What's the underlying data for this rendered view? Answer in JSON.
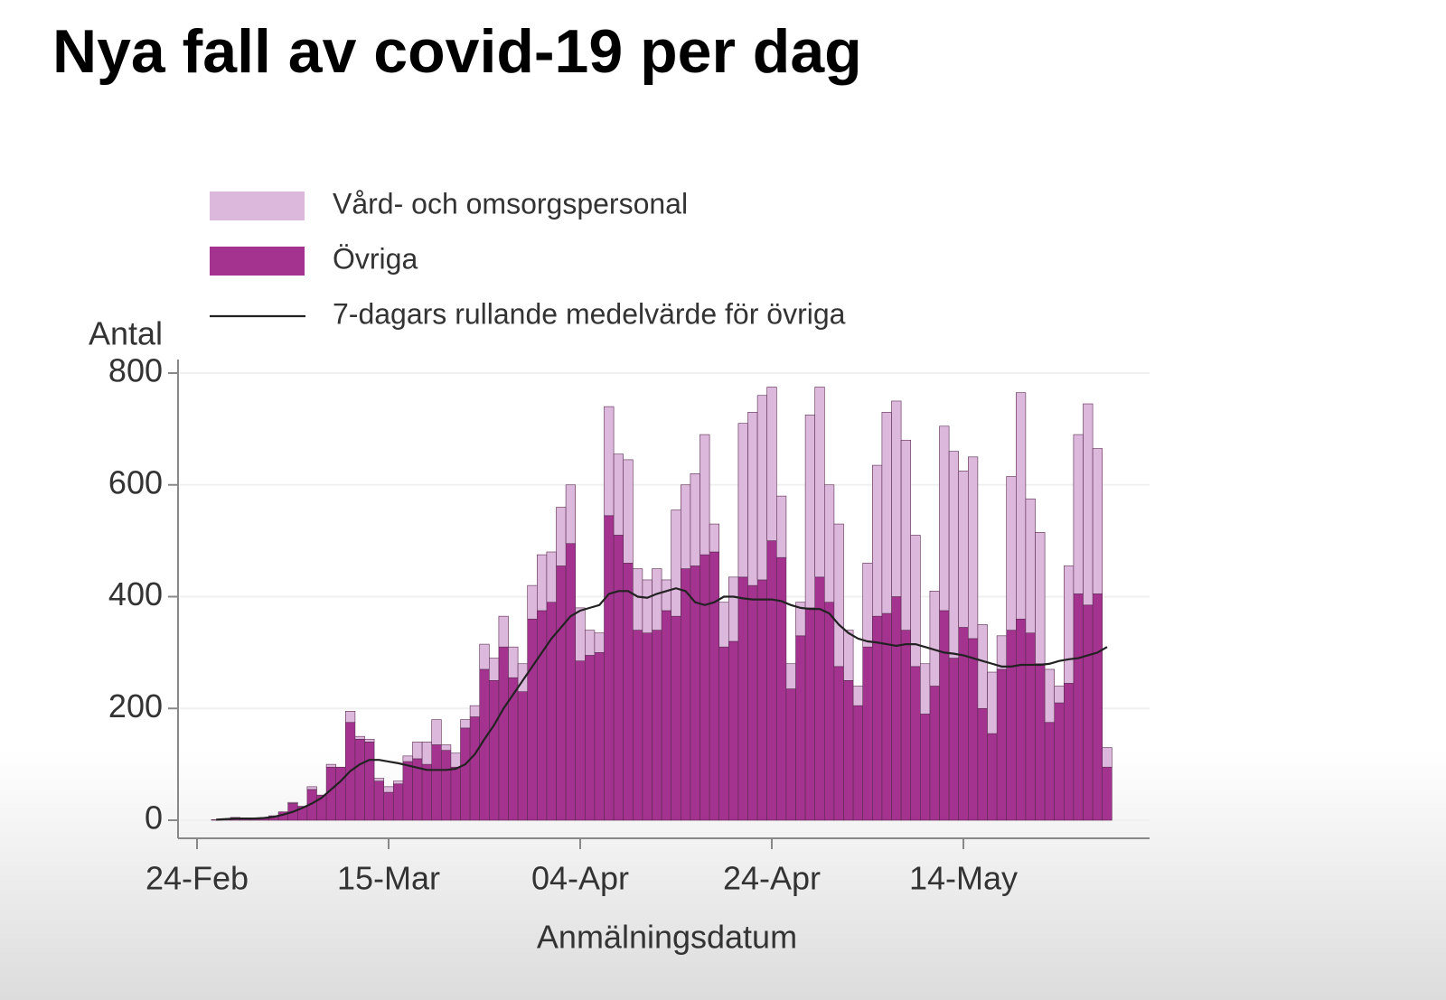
{
  "chart_data": {
    "type": "bar",
    "title": "Nya fall av covid-19 per dag",
    "y_label": "Antal",
    "x_label": "Anmälningsdatum",
    "stacked": true,
    "grid": true,
    "categories": [
      "24-Feb",
      null,
      null,
      null,
      null,
      null,
      null,
      null,
      null,
      null,
      null,
      null,
      null,
      null,
      null,
      null,
      null,
      null,
      null,
      null,
      "15-Mar",
      null,
      null,
      null,
      null,
      null,
      null,
      null,
      null,
      null,
      null,
      null,
      null,
      null,
      null,
      null,
      null,
      null,
      null,
      null,
      "04-Apr",
      null,
      null,
      null,
      null,
      null,
      null,
      null,
      null,
      null,
      null,
      null,
      null,
      null,
      null,
      null,
      null,
      null,
      null,
      null,
      "24-Apr",
      null,
      null,
      null,
      null,
      null,
      null,
      null,
      null,
      null,
      null,
      null,
      null,
      null,
      null,
      null,
      null,
      null,
      null,
      null,
      "14-May",
      null,
      null,
      null,
      null,
      null,
      null,
      null,
      null,
      null,
      null,
      null,
      null,
      null,
      null,
      null
    ],
    "series": [
      {
        "name": "Vård- och omsorgspersonal",
        "type": "bar",
        "color": "#dcb9dc",
        "values": [
          null,
          null,
          0,
          0,
          0,
          0,
          0,
          0,
          0,
          0,
          2,
          0,
          5,
          0,
          5,
          0,
          20,
          5,
          5,
          5,
          10,
          5,
          10,
          30,
          40,
          45,
          10,
          25,
          15,
          20,
          45,
          40,
          55,
          55,
          50,
          60,
          100,
          90,
          105,
          105,
          95,
          45,
          35,
          195,
          145,
          185,
          110,
          95,
          110,
          55,
          190,
          150,
          165,
          215,
          50,
          80,
          115,
          275,
          310,
          330,
          275,
          110,
          45,
          60,
          345,
          340,
          210,
          255,
          90,
          35,
          150,
          270,
          360,
          350,
          340,
          235,
          90,
          170,
          330,
          370,
          280,
          325,
          150,
          110,
          60,
          275,
          405,
          240,
          235,
          95,
          30,
          210,
          285,
          360,
          260,
          35
        ]
      },
      {
        "name": "Övriga",
        "type": "bar",
        "color": "#a3338f",
        "values": [
          null,
          null,
          1,
          2,
          5,
          3,
          2,
          3,
          8,
          15,
          30,
          25,
          55,
          45,
          95,
          95,
          175,
          145,
          140,
          70,
          50,
          65,
          105,
          110,
          100,
          135,
          125,
          95,
          165,
          185,
          270,
          250,
          310,
          255,
          230,
          360,
          375,
          390,
          455,
          495,
          285,
          295,
          300,
          545,
          510,
          460,
          340,
          335,
          340,
          375,
          365,
          450,
          455,
          475,
          480,
          310,
          320,
          435,
          420,
          430,
          500,
          470,
          235,
          330,
          380,
          435,
          390,
          275,
          250,
          205,
          310,
          365,
          370,
          400,
          340,
          275,
          190,
          240,
          375,
          290,
          345,
          325,
          200,
          155,
          270,
          340,
          360,
          335,
          280,
          175,
          210,
          245,
          405,
          385,
          405,
          95
        ]
      },
      {
        "name": "7-dagars rullande medelvärde för övriga",
        "type": "line",
        "color": "#222222",
        "values": [
          null,
          null,
          1,
          2,
          3,
          3,
          3,
          4,
          6,
          10,
          15,
          22,
          30,
          40,
          55,
          70,
          88,
          100,
          108,
          108,
          105,
          102,
          98,
          94,
          90,
          90,
          90,
          92,
          100,
          118,
          145,
          170,
          200,
          225,
          250,
          275,
          300,
          325,
          345,
          365,
          375,
          380,
          385,
          405,
          410,
          410,
          400,
          398,
          405,
          410,
          415,
          410,
          390,
          385,
          390,
          400,
          400,
          397,
          395,
          395,
          395,
          392,
          385,
          380,
          378,
          378,
          370,
          350,
          335,
          325,
          320,
          318,
          315,
          312,
          315,
          315,
          310,
          305,
          300,
          298,
          295,
          290,
          285,
          280,
          275,
          275,
          278,
          278,
          278,
          280,
          285,
          288,
          290,
          295,
          300,
          310
        ]
      }
    ],
    "ylim": [
      0,
      800
    ],
    "yticks": [
      0,
      200,
      400,
      600,
      800
    ]
  }
}
